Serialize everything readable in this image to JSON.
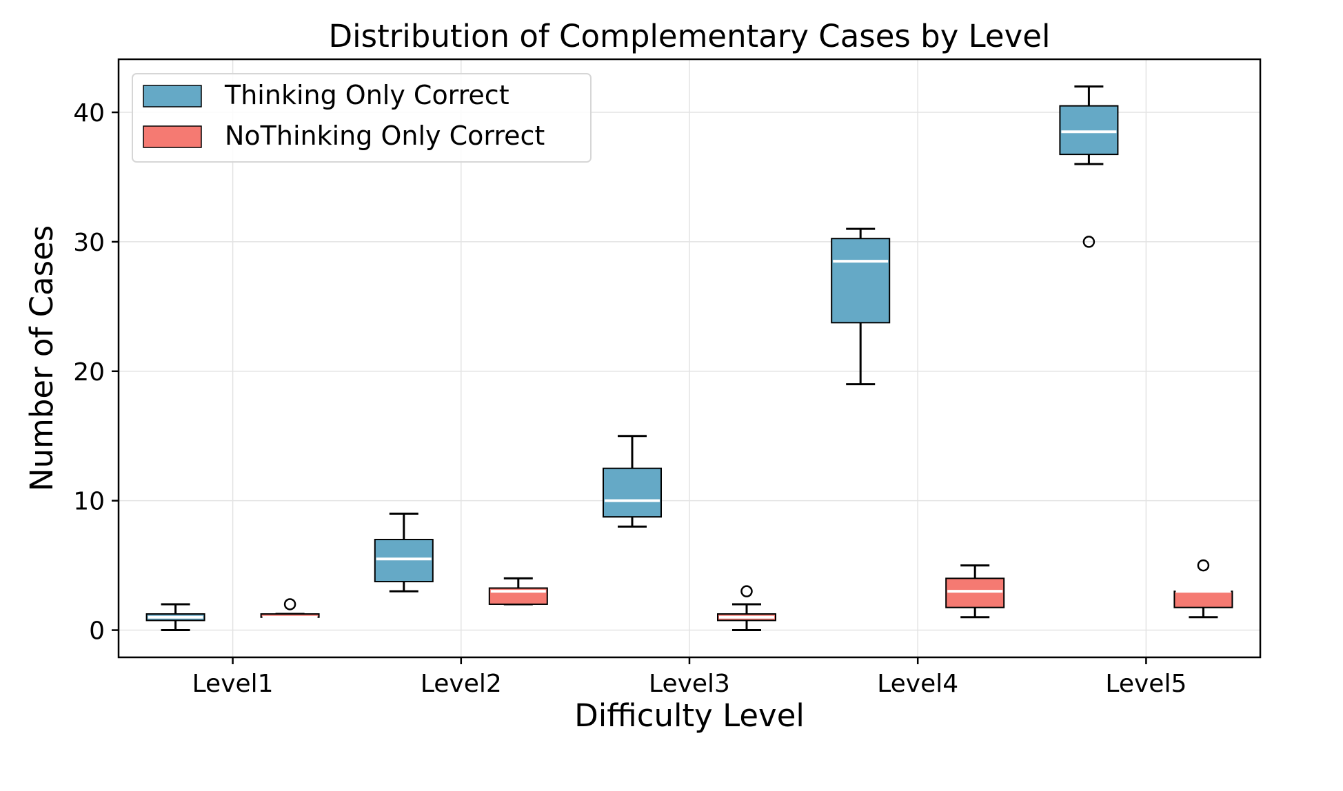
{
  "chart_data": {
    "type": "box",
    "title": "Distribution of Complementary Cases by Level",
    "xlabel": "Difficulty Level",
    "ylabel": "Number of Cases",
    "categories": [
      "Level1",
      "Level2",
      "Level3",
      "Level4",
      "Level5"
    ],
    "ylim": [
      -2.1,
      44.1
    ],
    "yticks": [
      0,
      10,
      20,
      30,
      40
    ],
    "grid": true,
    "legend_position": "top-left",
    "series": [
      {
        "name": "Thinking Only Correct",
        "color": "#65a9c6",
        "median_color": "#ffffff",
        "boxes": [
          {
            "whislo": 0,
            "q1": 0.75,
            "med": 1,
            "q3": 1.25,
            "whishi": 2,
            "fliers": []
          },
          {
            "whislo": 3,
            "q1": 3.75,
            "med": 5.5,
            "q3": 7,
            "whishi": 9,
            "fliers": []
          },
          {
            "whislo": 8,
            "q1": 8.75,
            "med": 10,
            "q3": 12.5,
            "whishi": 15,
            "fliers": []
          },
          {
            "whislo": 19,
            "q1": 23.75,
            "med": 28.5,
            "q3": 30.25,
            "whishi": 31,
            "fliers": []
          },
          {
            "whislo": 36,
            "q1": 36.75,
            "med": 38.5,
            "q3": 40.5,
            "whishi": 42,
            "fliers": [
              30
            ]
          }
        ]
      },
      {
        "name": "NoThinking Only Correct",
        "color": "#f57a72",
        "median_color": "#ffffff",
        "boxes": [
          {
            "whislo": 1,
            "q1": 1,
            "med": 1,
            "q3": 1.25,
            "whishi": 1.25,
            "fliers": [
              2
            ]
          },
          {
            "whislo": 2,
            "q1": 2,
            "med": 3,
            "q3": 3.25,
            "whishi": 4,
            "fliers": []
          },
          {
            "whislo": 0,
            "q1": 0.75,
            "med": 1,
            "q3": 1.25,
            "whishi": 2,
            "fliers": [
              3
            ]
          },
          {
            "whislo": 1,
            "q1": 1.75,
            "med": 3,
            "q3": 4,
            "whishi": 5,
            "fliers": []
          },
          {
            "whislo": 1,
            "q1": 1.75,
            "med": 3,
            "q3": 3,
            "whishi": 3,
            "fliers": [
              5
            ]
          }
        ]
      }
    ]
  }
}
